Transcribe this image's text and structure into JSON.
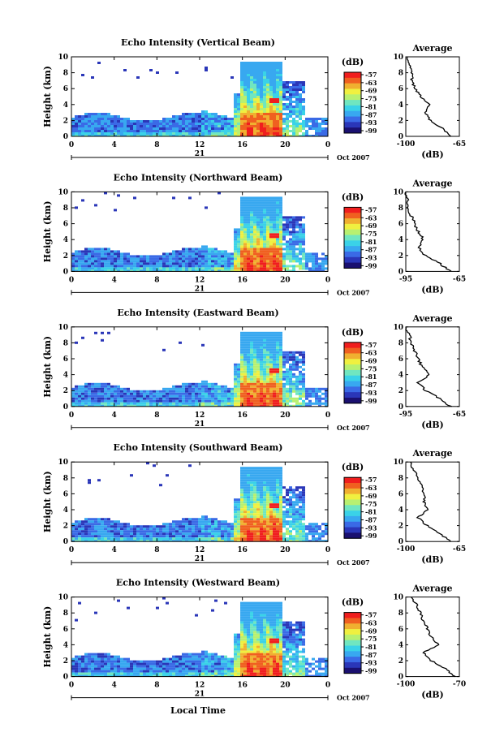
{
  "figure": {
    "xlabel": "Local Time",
    "ylabel": "Height (km)",
    "date_label": "Oct 2007",
    "day_label": "21",
    "colorbar_unit": "(dB)",
    "colorbar_ticks": [
      "-57",
      "-63",
      "-69",
      "-75",
      "-81",
      "-87",
      "-93",
      "-99"
    ],
    "avg_title": "Average",
    "avg_xlabel": "(dB)",
    "time_ticks": [
      "0",
      "4",
      "8",
      "12",
      "16",
      "20",
      "0"
    ],
    "height_ticks": [
      "0",
      "2",
      "4",
      "6",
      "8",
      "10"
    ]
  },
  "colors": {
    "colormap": [
      "#1a1070",
      "#2a36b8",
      "#3a6ae6",
      "#38a8f0",
      "#3ad2e8",
      "#70e6c0",
      "#b8f070",
      "#f0f040",
      "#f0b030",
      "#f06020",
      "#f01e1e"
    ]
  },
  "chart_data": [
    {
      "type": "heatmap",
      "title": "Echo Intensity (Vertical Beam)",
      "xlim": [
        0,
        24
      ],
      "ylim": [
        0,
        10
      ],
      "avg": {
        "xticks": [
          "-100",
          "-65"
        ],
        "xlim": [
          -100,
          -65
        ],
        "profile": [
          [
            -70,
            0
          ],
          [
            -76,
            1
          ],
          [
            -84,
            2
          ],
          [
            -87,
            3
          ],
          [
            -85,
            4
          ],
          [
            -90,
            5
          ],
          [
            -94,
            6
          ],
          [
            -96,
            7
          ],
          [
            -96,
            8
          ],
          [
            -98,
            9
          ],
          [
            -99,
            10
          ]
        ]
      }
    },
    {
      "type": "heatmap",
      "title": "Echo Intensity (Northward Beam)",
      "xlim": [
        0,
        24
      ],
      "ylim": [
        0,
        10
      ],
      "avg": {
        "xticks": [
          "-95",
          "-65"
        ],
        "xlim": [
          -95,
          -65
        ],
        "profile": [
          [
            -70,
            0
          ],
          [
            -76,
            1
          ],
          [
            -84,
            2
          ],
          [
            -88,
            3
          ],
          [
            -85,
            4
          ],
          [
            -88,
            5
          ],
          [
            -90,
            6
          ],
          [
            -92,
            7
          ],
          [
            -94,
            8
          ],
          [
            -94,
            9
          ],
          [
            -95,
            10
          ]
        ]
      }
    },
    {
      "type": "heatmap",
      "title": "Echo Intensity (Eastward Beam)",
      "xlim": [
        0,
        24
      ],
      "ylim": [
        0,
        10
      ],
      "avg": {
        "xticks": [
          "-95",
          "-65"
        ],
        "xlim": [
          -95,
          -65
        ],
        "profile": [
          [
            -70,
            0
          ],
          [
            -76,
            1
          ],
          [
            -84,
            2
          ],
          [
            -88,
            3
          ],
          [
            -82,
            4
          ],
          [
            -86,
            5
          ],
          [
            -88,
            6
          ],
          [
            -90,
            7
          ],
          [
            -92,
            8
          ],
          [
            -93,
            9
          ],
          [
            -95,
            10
          ]
        ]
      }
    },
    {
      "type": "heatmap",
      "title": "Echo Intensity (Southward Beam)",
      "xlim": [
        0,
        24
      ],
      "ylim": [
        0,
        10
      ],
      "avg": {
        "xticks": [
          "-100",
          "-65"
        ],
        "xlim": [
          -100,
          -65
        ],
        "profile": [
          [
            -70,
            0
          ],
          [
            -78,
            1
          ],
          [
            -86,
            2
          ],
          [
            -92,
            3
          ],
          [
            -86,
            4
          ],
          [
            -88,
            5
          ],
          [
            -88,
            6
          ],
          [
            -90,
            7
          ],
          [
            -92,
            8
          ],
          [
            -95,
            9
          ],
          [
            -97,
            10
          ]
        ]
      }
    },
    {
      "type": "heatmap",
      "title": "Echo Intensity (Westward Beam)",
      "xlim": [
        0,
        24
      ],
      "ylim": [
        0,
        10
      ],
      "avg": {
        "xticks": [
          "-100",
          "-70"
        ],
        "xlim": [
          -100,
          -70
        ],
        "profile": [
          [
            -72,
            0
          ],
          [
            -78,
            1
          ],
          [
            -86,
            2
          ],
          [
            -90,
            3
          ],
          [
            -82,
            4
          ],
          [
            -86,
            5
          ],
          [
            -88,
            6
          ],
          [
            -90,
            7
          ],
          [
            -92,
            8
          ],
          [
            -94,
            9
          ],
          [
            -97,
            10
          ]
        ]
      }
    }
  ]
}
